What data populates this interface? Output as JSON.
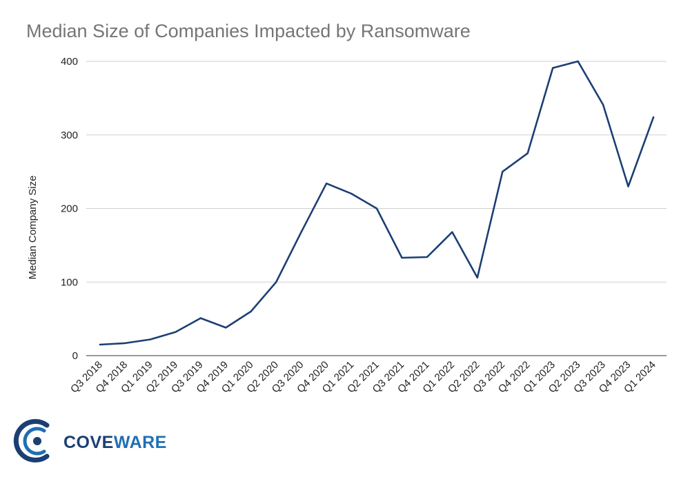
{
  "chart_data": {
    "type": "line",
    "title": "Median Size of Companies Impacted by Ransomware",
    "xlabel": "",
    "ylabel": "Median Company Size",
    "ylim": [
      0,
      400
    ],
    "yticks": [
      0,
      100,
      200,
      300,
      400
    ],
    "grid": true,
    "legend": "none",
    "categories": [
      "Q3 2018",
      "Q4 2018",
      "Q1 2019",
      "Q2 2019",
      "Q3 2019",
      "Q4 2019",
      "Q1 2020",
      "Q2 2020",
      "Q3 2020",
      "Q4 2020",
      "Q1 2021",
      "Q2 2021",
      "Q3 2021",
      "Q4 2021",
      "Q1 2022",
      "Q2 2022",
      "Q3 2022",
      "Q4 2022",
      "Q1 2023",
      "Q2 2023",
      "Q3 2023",
      "Q4 2023",
      "Q1 2024"
    ],
    "series": [
      {
        "name": "Median Company Size",
        "color": "#1b3f73",
        "values": [
          15,
          17,
          22,
          32,
          51,
          38,
          60,
          100,
          168,
          234,
          220,
          200,
          133,
          134,
          168,
          106,
          250,
          275,
          391,
          400,
          341,
          230,
          324
        ]
      }
    ]
  },
  "branding": {
    "logo_text_a": "COVE",
    "logo_text_b": "WARE",
    "logo_color_a": "#1b3f73",
    "logo_color_b": "#1f6fb5"
  }
}
